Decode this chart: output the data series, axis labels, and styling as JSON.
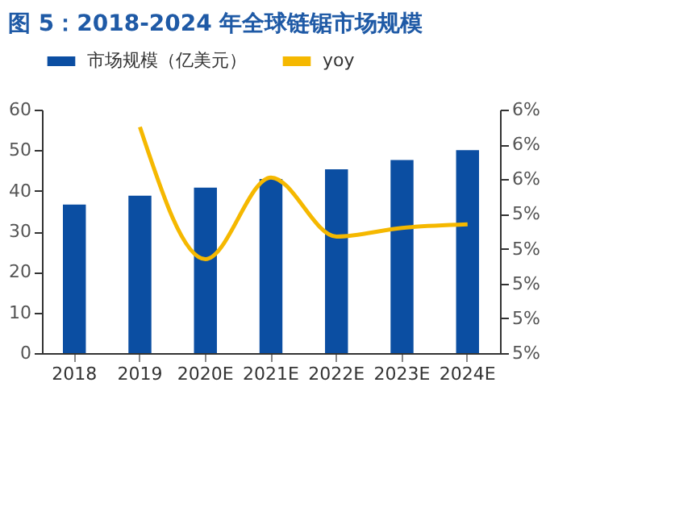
{
  "chart_data": {
    "type": "bar",
    "title": "图 5：2018-2024 年全球链锯市场规模",
    "categories": [
      "2018",
      "2019",
      "2020E",
      "2021E",
      "2022E",
      "2023E",
      "2024E"
    ],
    "series": [
      {
        "name": "市场规模（亿美元）",
        "color": "#0b4ea2",
        "values": [
          36.6,
          38.8,
          40.8,
          42.9,
          45.3,
          47.6,
          50.0
        ]
      },
      {
        "name": "yoy",
        "type": "line",
        "axis": "y2",
        "color": "#f5b800",
        "values": [
          null,
          5.9,
          5.14,
          5.61,
          5.27,
          5.32,
          5.34
        ]
      }
    ],
    "ylim": [
      0,
      60
    ],
    "yticks": [
      0,
      10,
      20,
      30,
      40,
      50,
      60
    ],
    "y2lim": [
      4.6,
      6.0
    ],
    "y2ticks": [
      {
        "value": 4.6,
        "label": "5%"
      },
      {
        "value": 4.8,
        "label": "5%"
      },
      {
        "value": 5.0,
        "label": "5%"
      },
      {
        "value": 5.2,
        "label": "5%"
      },
      {
        "value": 5.4,
        "label": "5%"
      },
      {
        "value": 5.6,
        "label": "6%"
      },
      {
        "value": 5.8,
        "label": "6%"
      },
      {
        "value": 6.0,
        "label": "6%"
      }
    ],
    "grid": false,
    "legend": "top",
    "marker": "none",
    "line_style": "solid"
  }
}
